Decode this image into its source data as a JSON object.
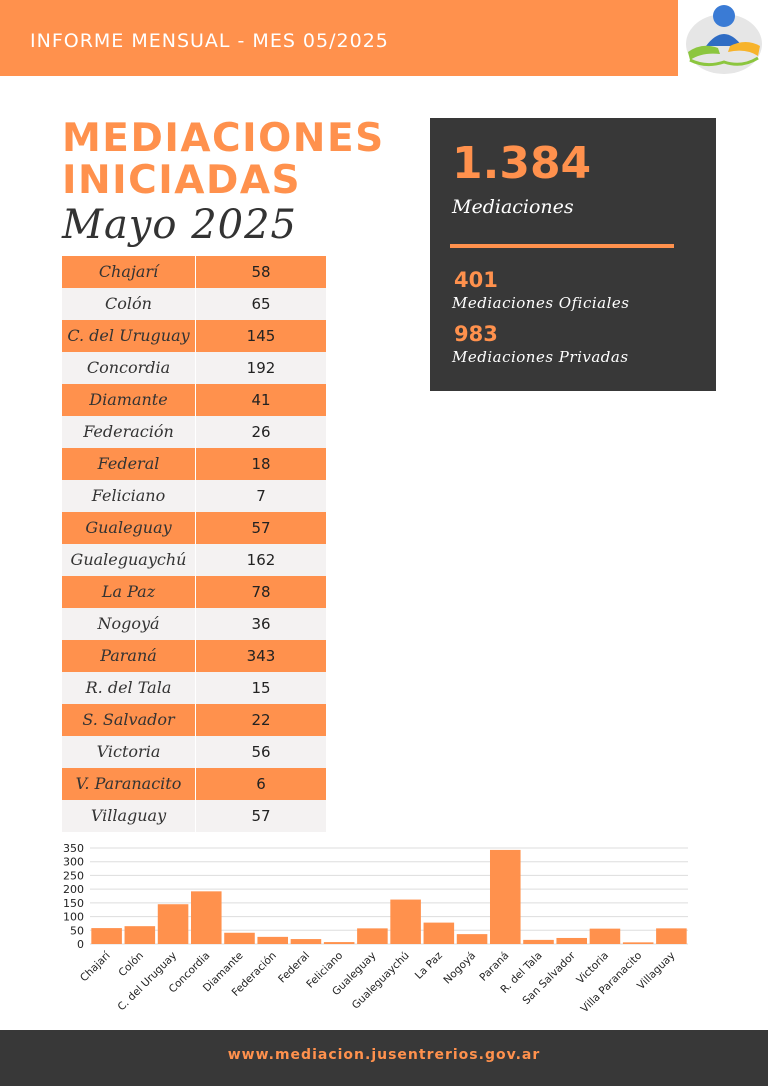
{
  "header": {
    "title": "INFORME MENSUAL - MES 05/2025"
  },
  "logo": {
    "icon": "mediation-people-handshake-icon"
  },
  "main": {
    "title_line1": "MEDIACIONES",
    "title_line2": "INICIADAS",
    "subtitle": "Mayo 2025"
  },
  "table": {
    "rows": [
      {
        "name": "Chajarí",
        "value": "58"
      },
      {
        "name": "Colón",
        "value": "65"
      },
      {
        "name": "C. del Uruguay",
        "value": "145"
      },
      {
        "name": "Concordia",
        "value": "192"
      },
      {
        "name": "Diamante",
        "value": "41"
      },
      {
        "name": "Federación",
        "value": "26"
      },
      {
        "name": "Federal",
        "value": "18"
      },
      {
        "name": "Feliciano",
        "value": "7"
      },
      {
        "name": "Gualeguay",
        "value": "57"
      },
      {
        "name": "Gualeguaychú",
        "value": "162"
      },
      {
        "name": "La Paz",
        "value": "78"
      },
      {
        "name": "Nogoyá",
        "value": "36"
      },
      {
        "name": "Paraná",
        "value": "343"
      },
      {
        "name": "R. del Tala",
        "value": "15"
      },
      {
        "name": "S. Salvador",
        "value": "22"
      },
      {
        "name": "Victoria",
        "value": "56"
      },
      {
        "name": "V. Paranacito",
        "value": "6"
      },
      {
        "name": "Villaguay",
        "value": "57"
      }
    ]
  },
  "stats": {
    "total": "1.384",
    "total_label": "Mediaciones",
    "oficiales_value": "401",
    "oficiales_label": "Mediaciones Oficiales",
    "privadas_value": "983",
    "privadas_label": "Mediaciones Privadas"
  },
  "colors": {
    "accent": "#ff914d",
    "dark": "#383838",
    "row_alt": "#f4f2f2"
  },
  "chart_data": {
    "type": "bar",
    "categories": [
      "Chajarí",
      "Colón",
      "C. del Uruguay",
      "Concordia",
      "Diamante",
      "Federación",
      "Federal",
      "Feliciano",
      "Gualeguay",
      "Gualeguaychú",
      "La Paz",
      "Nogoyá",
      "Paraná",
      "R. del Tala",
      "San Salvador",
      "Victoria",
      "Villa Paranacito",
      "Villaguay"
    ],
    "values": [
      58,
      65,
      145,
      192,
      41,
      26,
      18,
      7,
      57,
      162,
      78,
      36,
      343,
      15,
      22,
      56,
      6,
      57
    ],
    "yticks": [
      0,
      50,
      100,
      150,
      200,
      250,
      300,
      350
    ],
    "ylim": [
      0,
      350
    ],
    "grid": true,
    "color": "#ff914d"
  },
  "footer": {
    "url": "www.mediacion.jusentrerios.gov.ar"
  }
}
